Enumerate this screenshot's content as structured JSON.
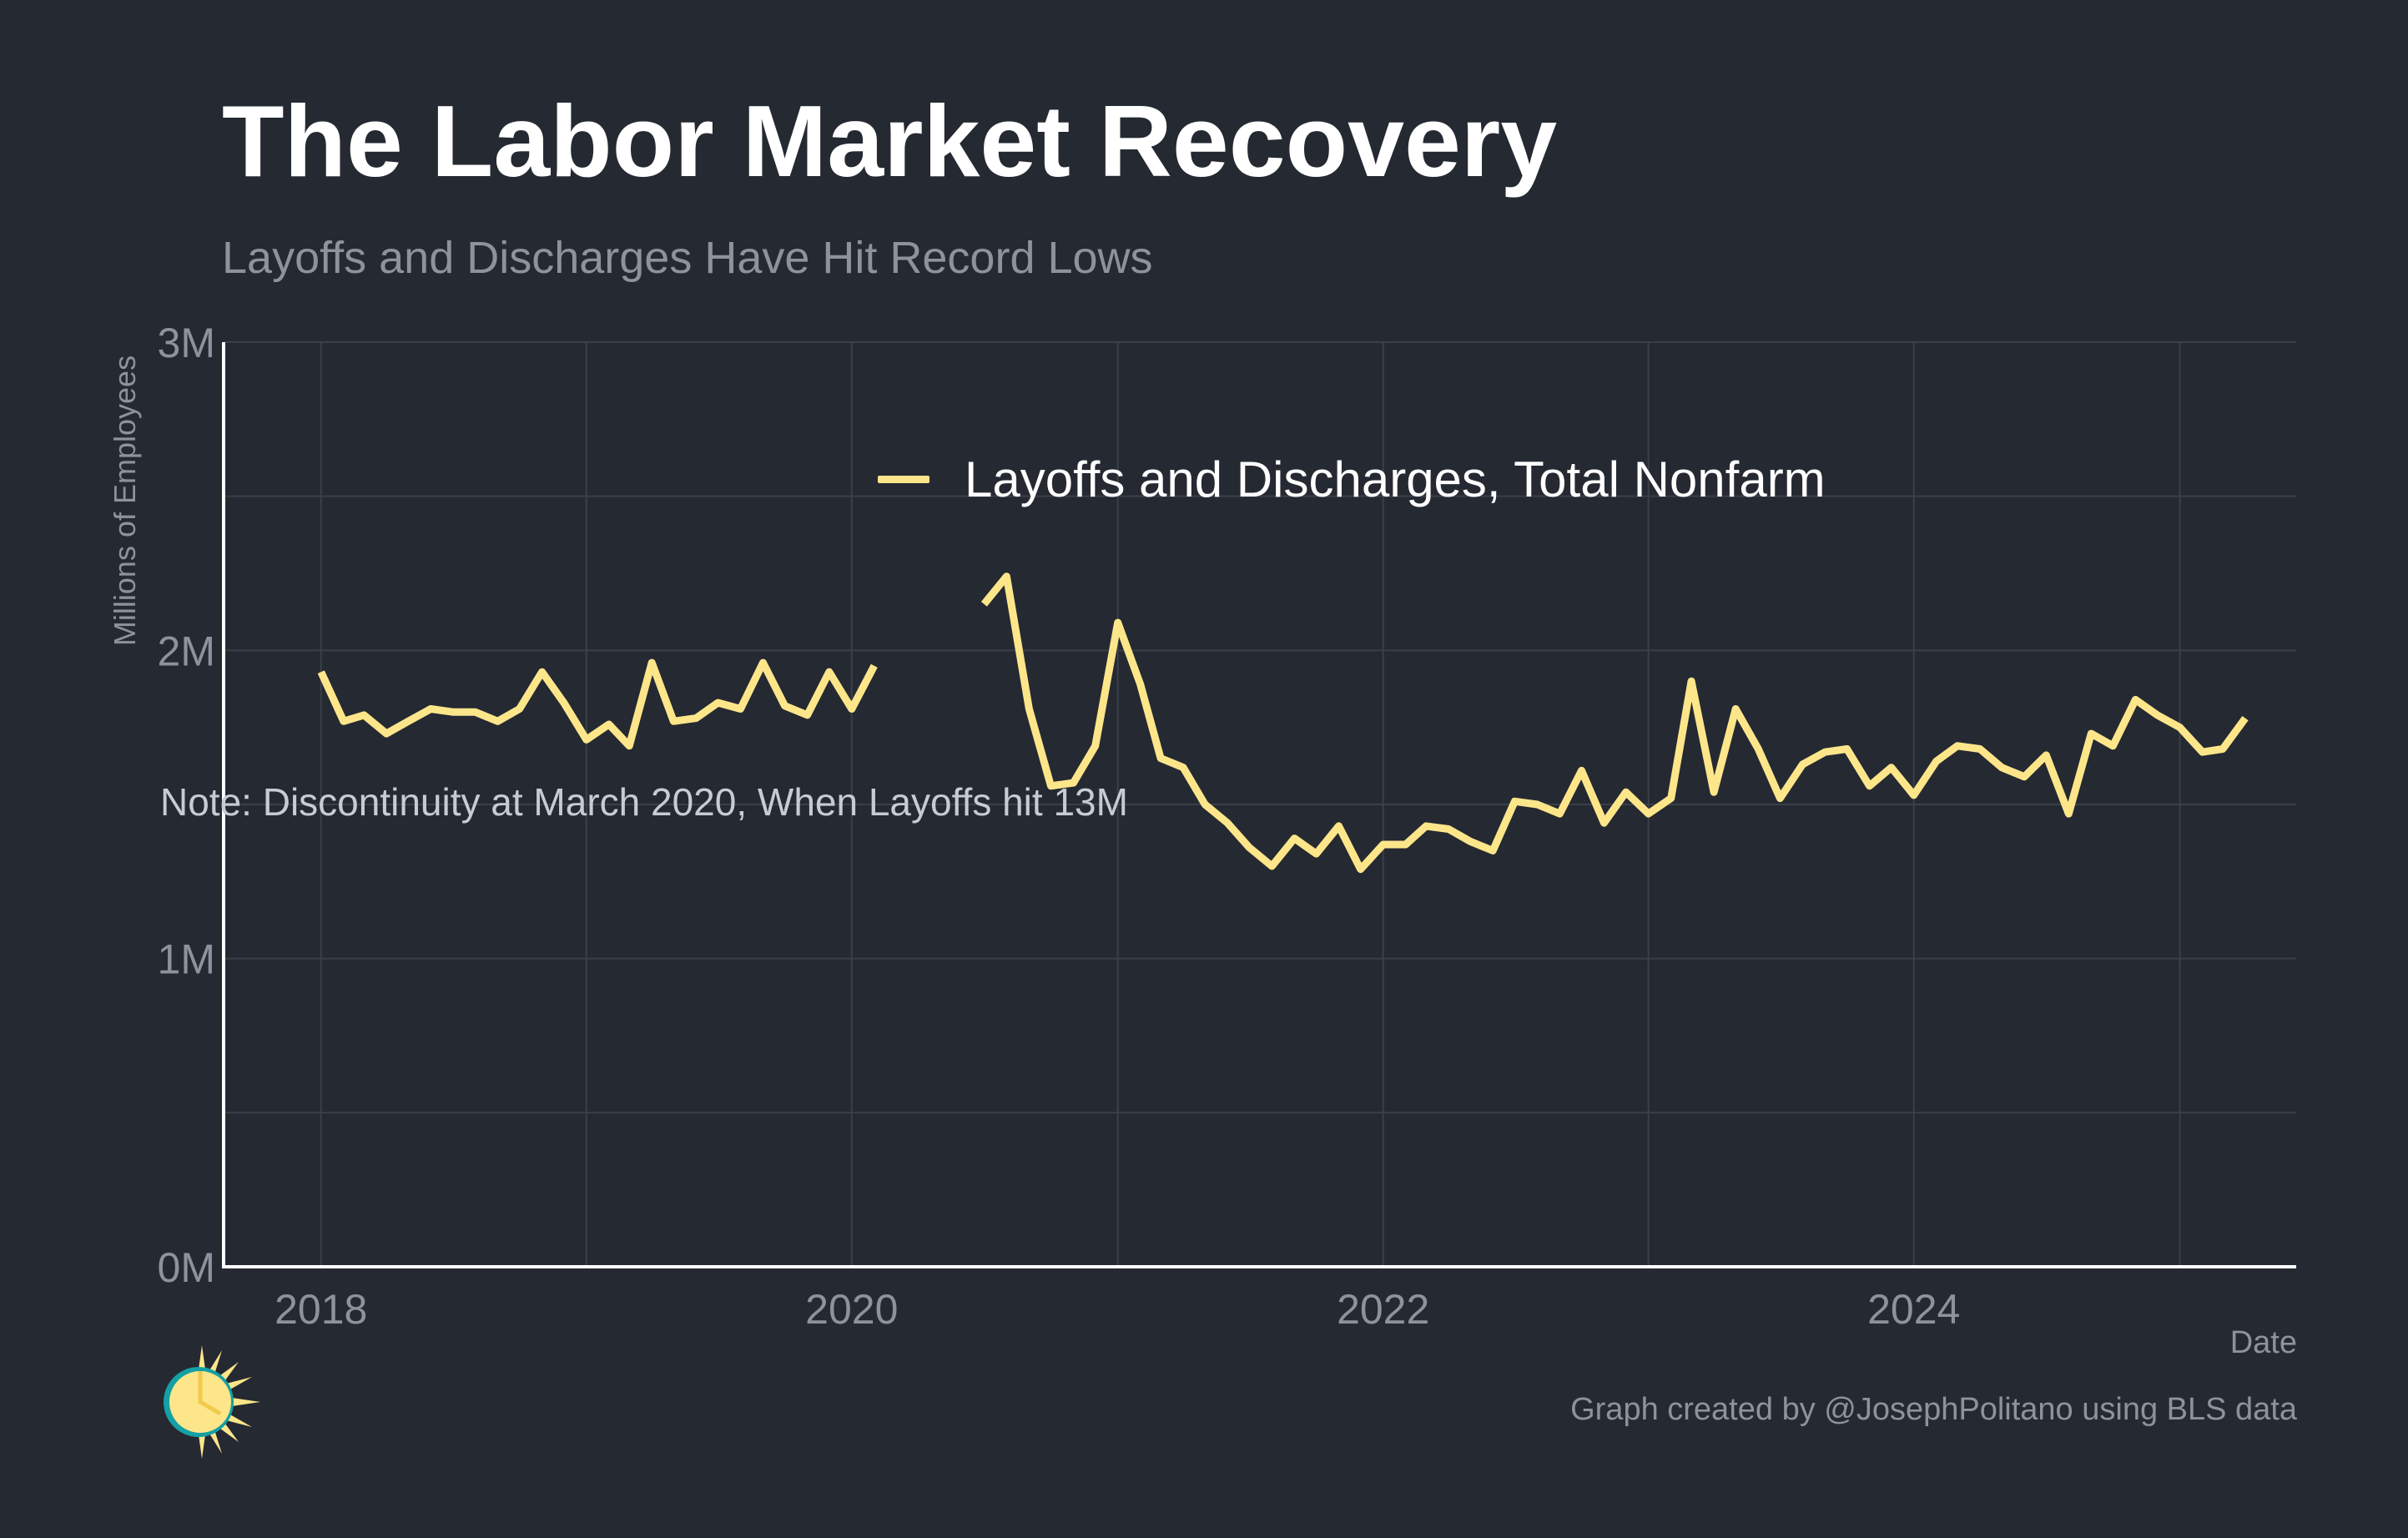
{
  "header": {
    "title": "The Labor Market Recovery",
    "subtitle": "Layoffs and Discharges Have Hit Record Lows"
  },
  "footer": {
    "credit": "Graph created by @JosephPolitano using BLS data"
  },
  "annotation": {
    "note": "Note: Discontinuity at March 2020, When Layoffs hit 13M"
  },
  "colors": {
    "background": "#252932",
    "series": "#fde68a",
    "grid": "#3b3f48",
    "axis": "#ffffff",
    "muted_text": "#8e929a"
  },
  "chart_data": {
    "type": "line",
    "title": "The Labor Market Recovery",
    "subtitle": "Layoffs and Discharges Have Hit Record Lows",
    "xlabel": "Date",
    "ylabel": "Millions of Employees",
    "ylim": [
      0,
      3
    ],
    "xlim": [
      "2017-08-20",
      "2025-06-10"
    ],
    "y_ticks": [
      0,
      1,
      2,
      3
    ],
    "y_tick_labels": [
      "0M",
      "1M",
      "2M",
      "3M"
    ],
    "x_ticks": [
      "2018-01-01",
      "2020-01-01",
      "2022-01-01",
      "2024-01-01"
    ],
    "x_tick_labels": [
      "2018",
      "2020",
      "2022",
      "2024"
    ],
    "grid": true,
    "legend_position": "top-center",
    "series": [
      {
        "name": "Layoffs and Discharges, Total Nonfarm",
        "unit": "millions",
        "start": "2018-01",
        "frequency": "monthly",
        "values": [
          1.93,
          1.77,
          1.79,
          1.73,
          1.77,
          1.81,
          1.8,
          1.8,
          1.77,
          1.81,
          1.93,
          1.83,
          1.71,
          1.76,
          1.69,
          1.96,
          1.77,
          1.78,
          1.83,
          1.81,
          1.96,
          1.82,
          1.79,
          1.93,
          1.81,
          1.95,
          null,
          null,
          null,
          null,
          2.15,
          2.24,
          1.81,
          1.56,
          1.57,
          1.69,
          2.09,
          1.89,
          1.65,
          1.62,
          1.5,
          1.44,
          1.36,
          1.3,
          1.39,
          1.34,
          1.43,
          1.29,
          1.37,
          1.37,
          1.43,
          1.42,
          1.38,
          1.35,
          1.51,
          1.5,
          1.47,
          1.61,
          1.44,
          1.54,
          1.47,
          1.52,
          1.9,
          1.54,
          1.81,
          1.68,
          1.52,
          1.63,
          1.67,
          1.68,
          1.56,
          1.62,
          1.53,
          1.64,
          1.69,
          1.68,
          1.62,
          1.59,
          1.66,
          1.47,
          1.73,
          1.69,
          1.84,
          1.79,
          1.75,
          1.67,
          1.68,
          1.78
        ]
      }
    ]
  }
}
